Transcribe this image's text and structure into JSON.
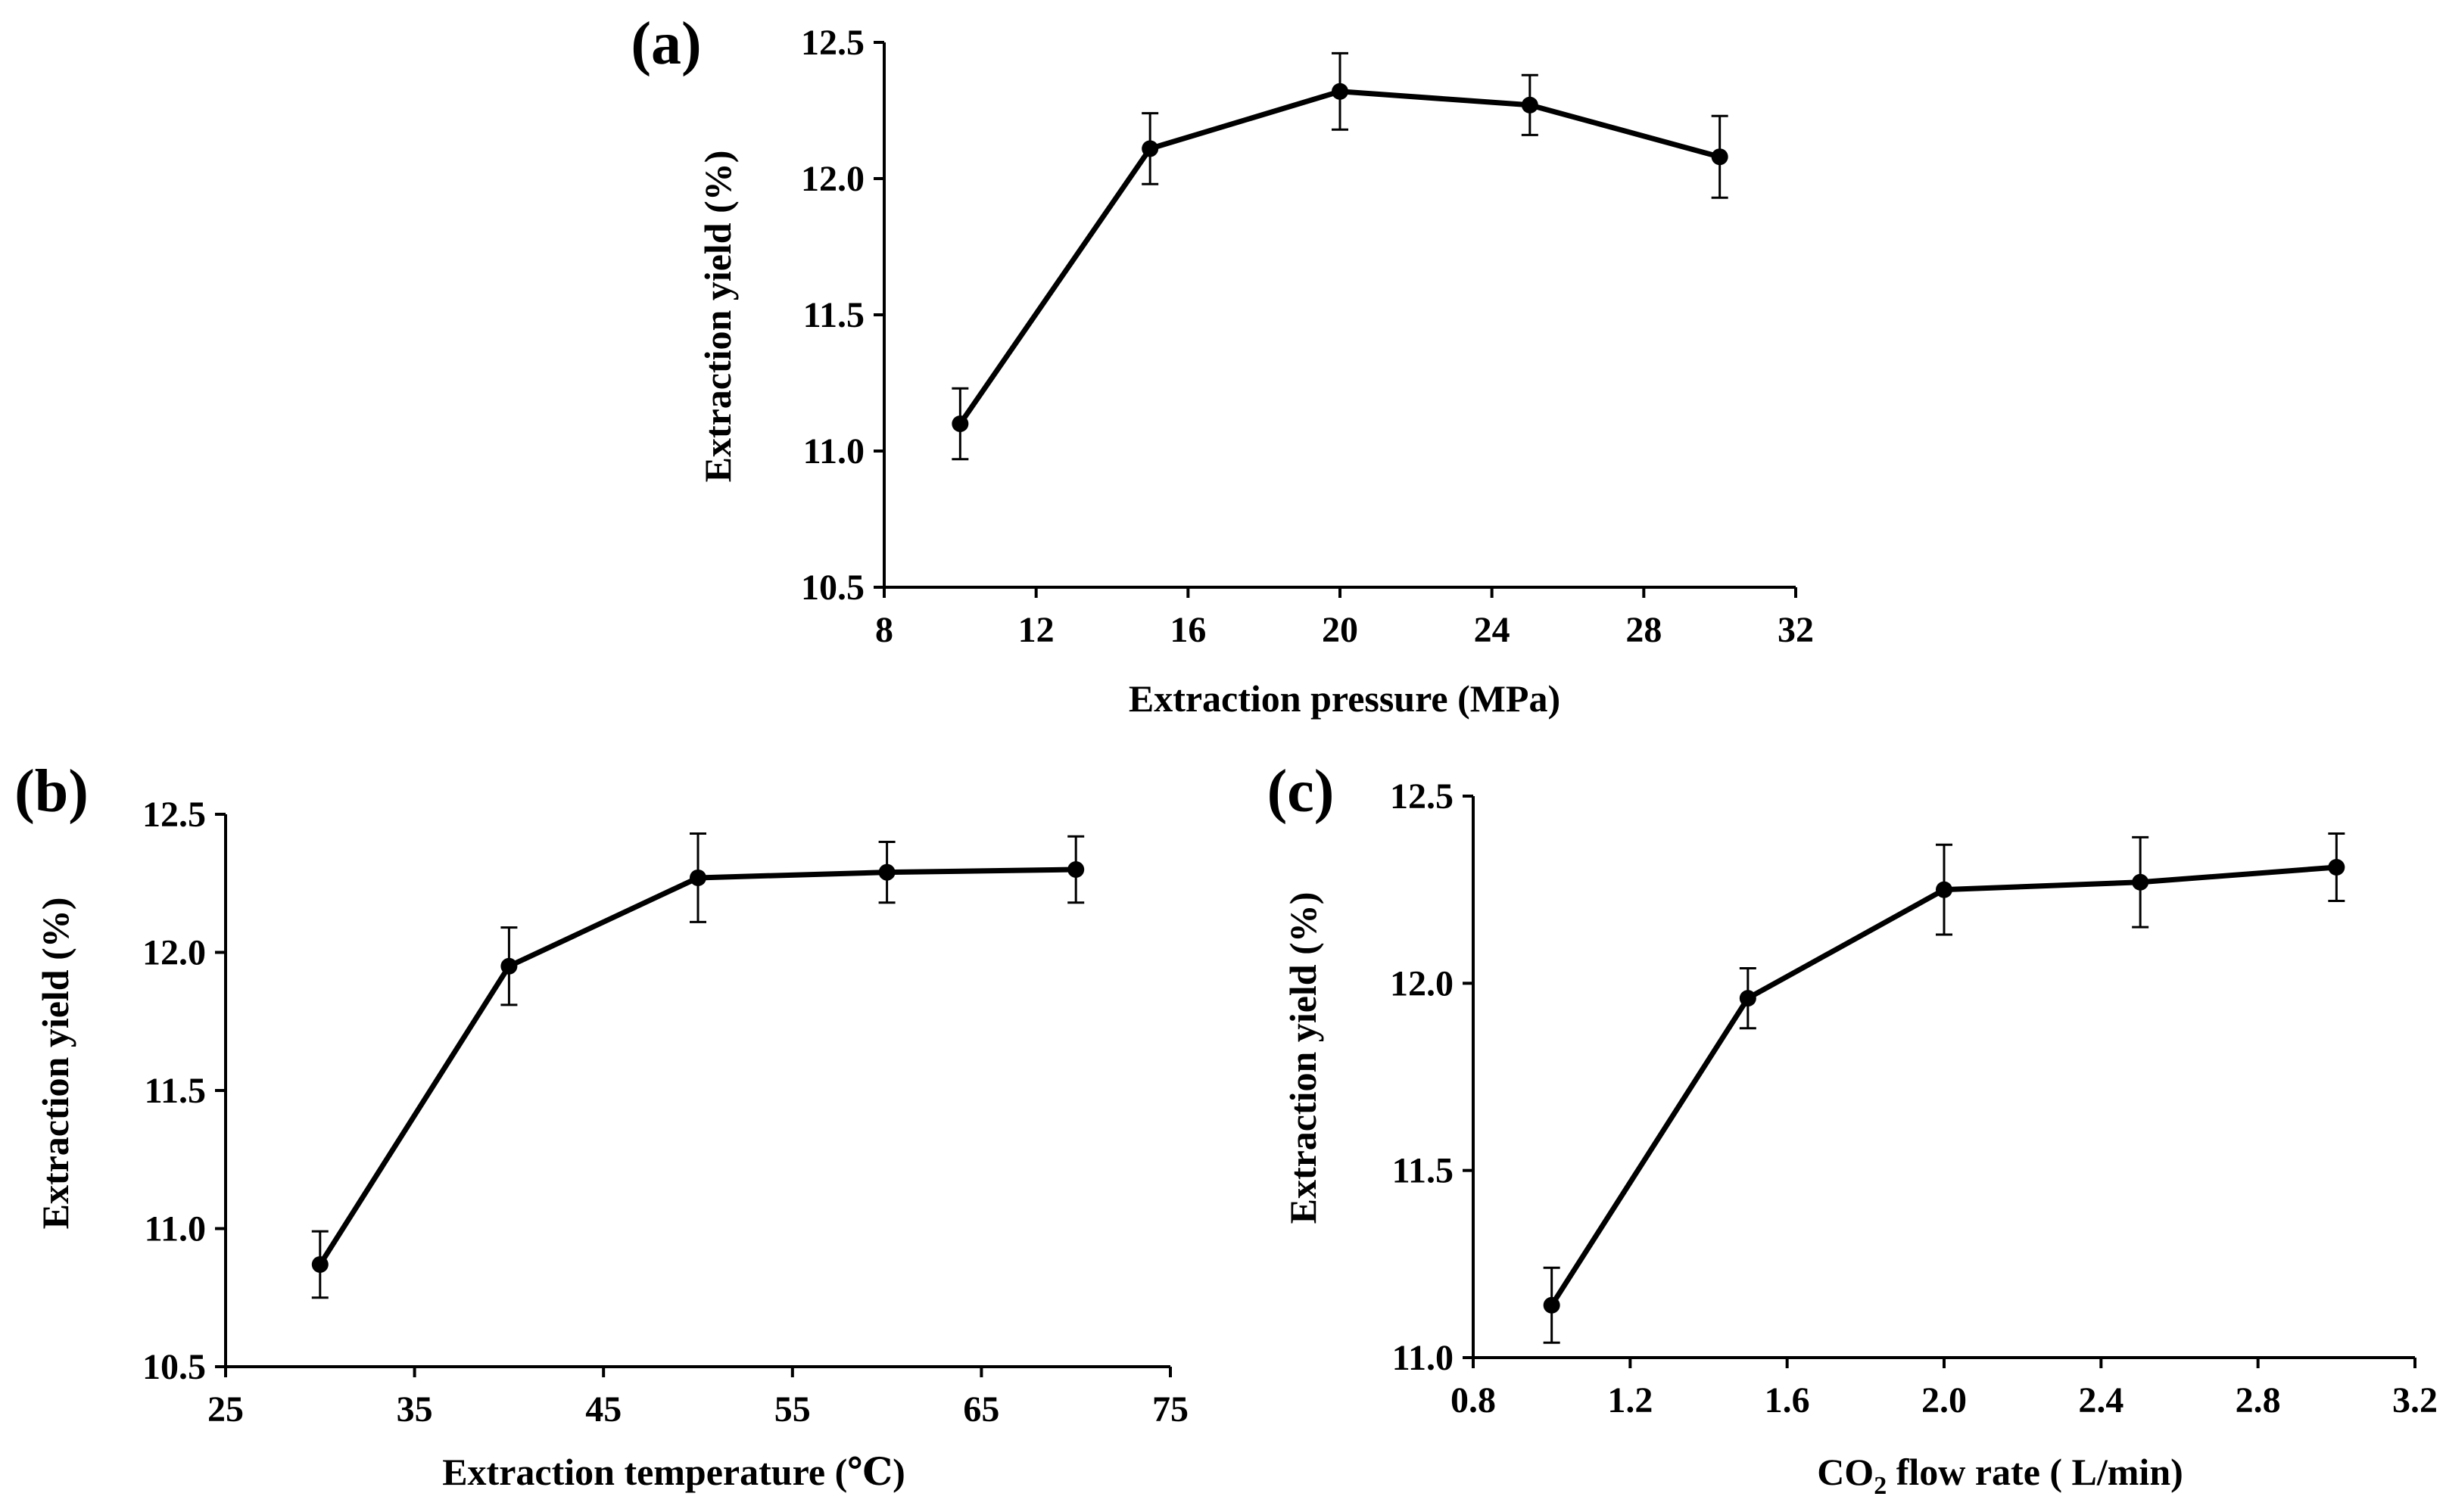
{
  "figure": {
    "colors": {
      "line": "#000000",
      "background": "#ffffff"
    }
  },
  "chart_data": [
    {
      "panel_label": "(a)",
      "type": "line",
      "xlabel": "Extraction pressure (MPa)",
      "ylabel": "Extraction yield (%)",
      "xlim": [
        8,
        32
      ],
      "ylim": [
        10.5,
        12.5
      ],
      "xticks": [
        "8",
        "12",
        "16",
        "20",
        "24",
        "28",
        "32"
      ],
      "yticks": [
        "10.5",
        "11.0",
        "11.5",
        "12.0",
        "12.5"
      ],
      "x": [
        10,
        15,
        20,
        25,
        30
      ],
      "y": [
        11.1,
        12.11,
        12.32,
        12.27,
        12.08
      ],
      "error": [
        0.13,
        0.13,
        0.14,
        0.11,
        0.15
      ]
    },
    {
      "panel_label": "(b)",
      "type": "line",
      "xlabel": "Extraction temperature (℃)",
      "ylabel": "Extraction yield (%)",
      "xlim": [
        25,
        75
      ],
      "ylim": [
        10.5,
        12.5
      ],
      "xticks": [
        "25",
        "35",
        "45",
        "55",
        "65",
        "75"
      ],
      "yticks": [
        "10.5",
        "11.0",
        "11.5",
        "12.0",
        "12.5"
      ],
      "x": [
        30,
        40,
        50,
        60,
        70
      ],
      "y": [
        10.87,
        11.95,
        12.27,
        12.29,
        12.3
      ],
      "error": [
        0.12,
        0.14,
        0.16,
        0.11,
        0.12
      ]
    },
    {
      "panel_label": "(c)",
      "type": "line",
      "xlabel_main": "CO",
      "xlabel_sub": "2",
      "xlabel_rest": " flow rate ( L/min)",
      "ylabel": "Extraction yield (%)",
      "xlim": [
        0.8,
        3.2
      ],
      "ylim": [
        11.0,
        12.5
      ],
      "xticks": [
        "0.8",
        "1.2",
        "1.6",
        "2.0",
        "2.4",
        "2.8",
        "3.2"
      ],
      "yticks": [
        "11.0",
        "11.5",
        "12.0",
        "12.5"
      ],
      "x": [
        1.0,
        1.5,
        2.0,
        2.5,
        3.0
      ],
      "y": [
        11.14,
        11.96,
        12.25,
        12.27,
        12.31
      ],
      "error": [
        0.1,
        0.08,
        0.12,
        0.12,
        0.09
      ]
    }
  ]
}
